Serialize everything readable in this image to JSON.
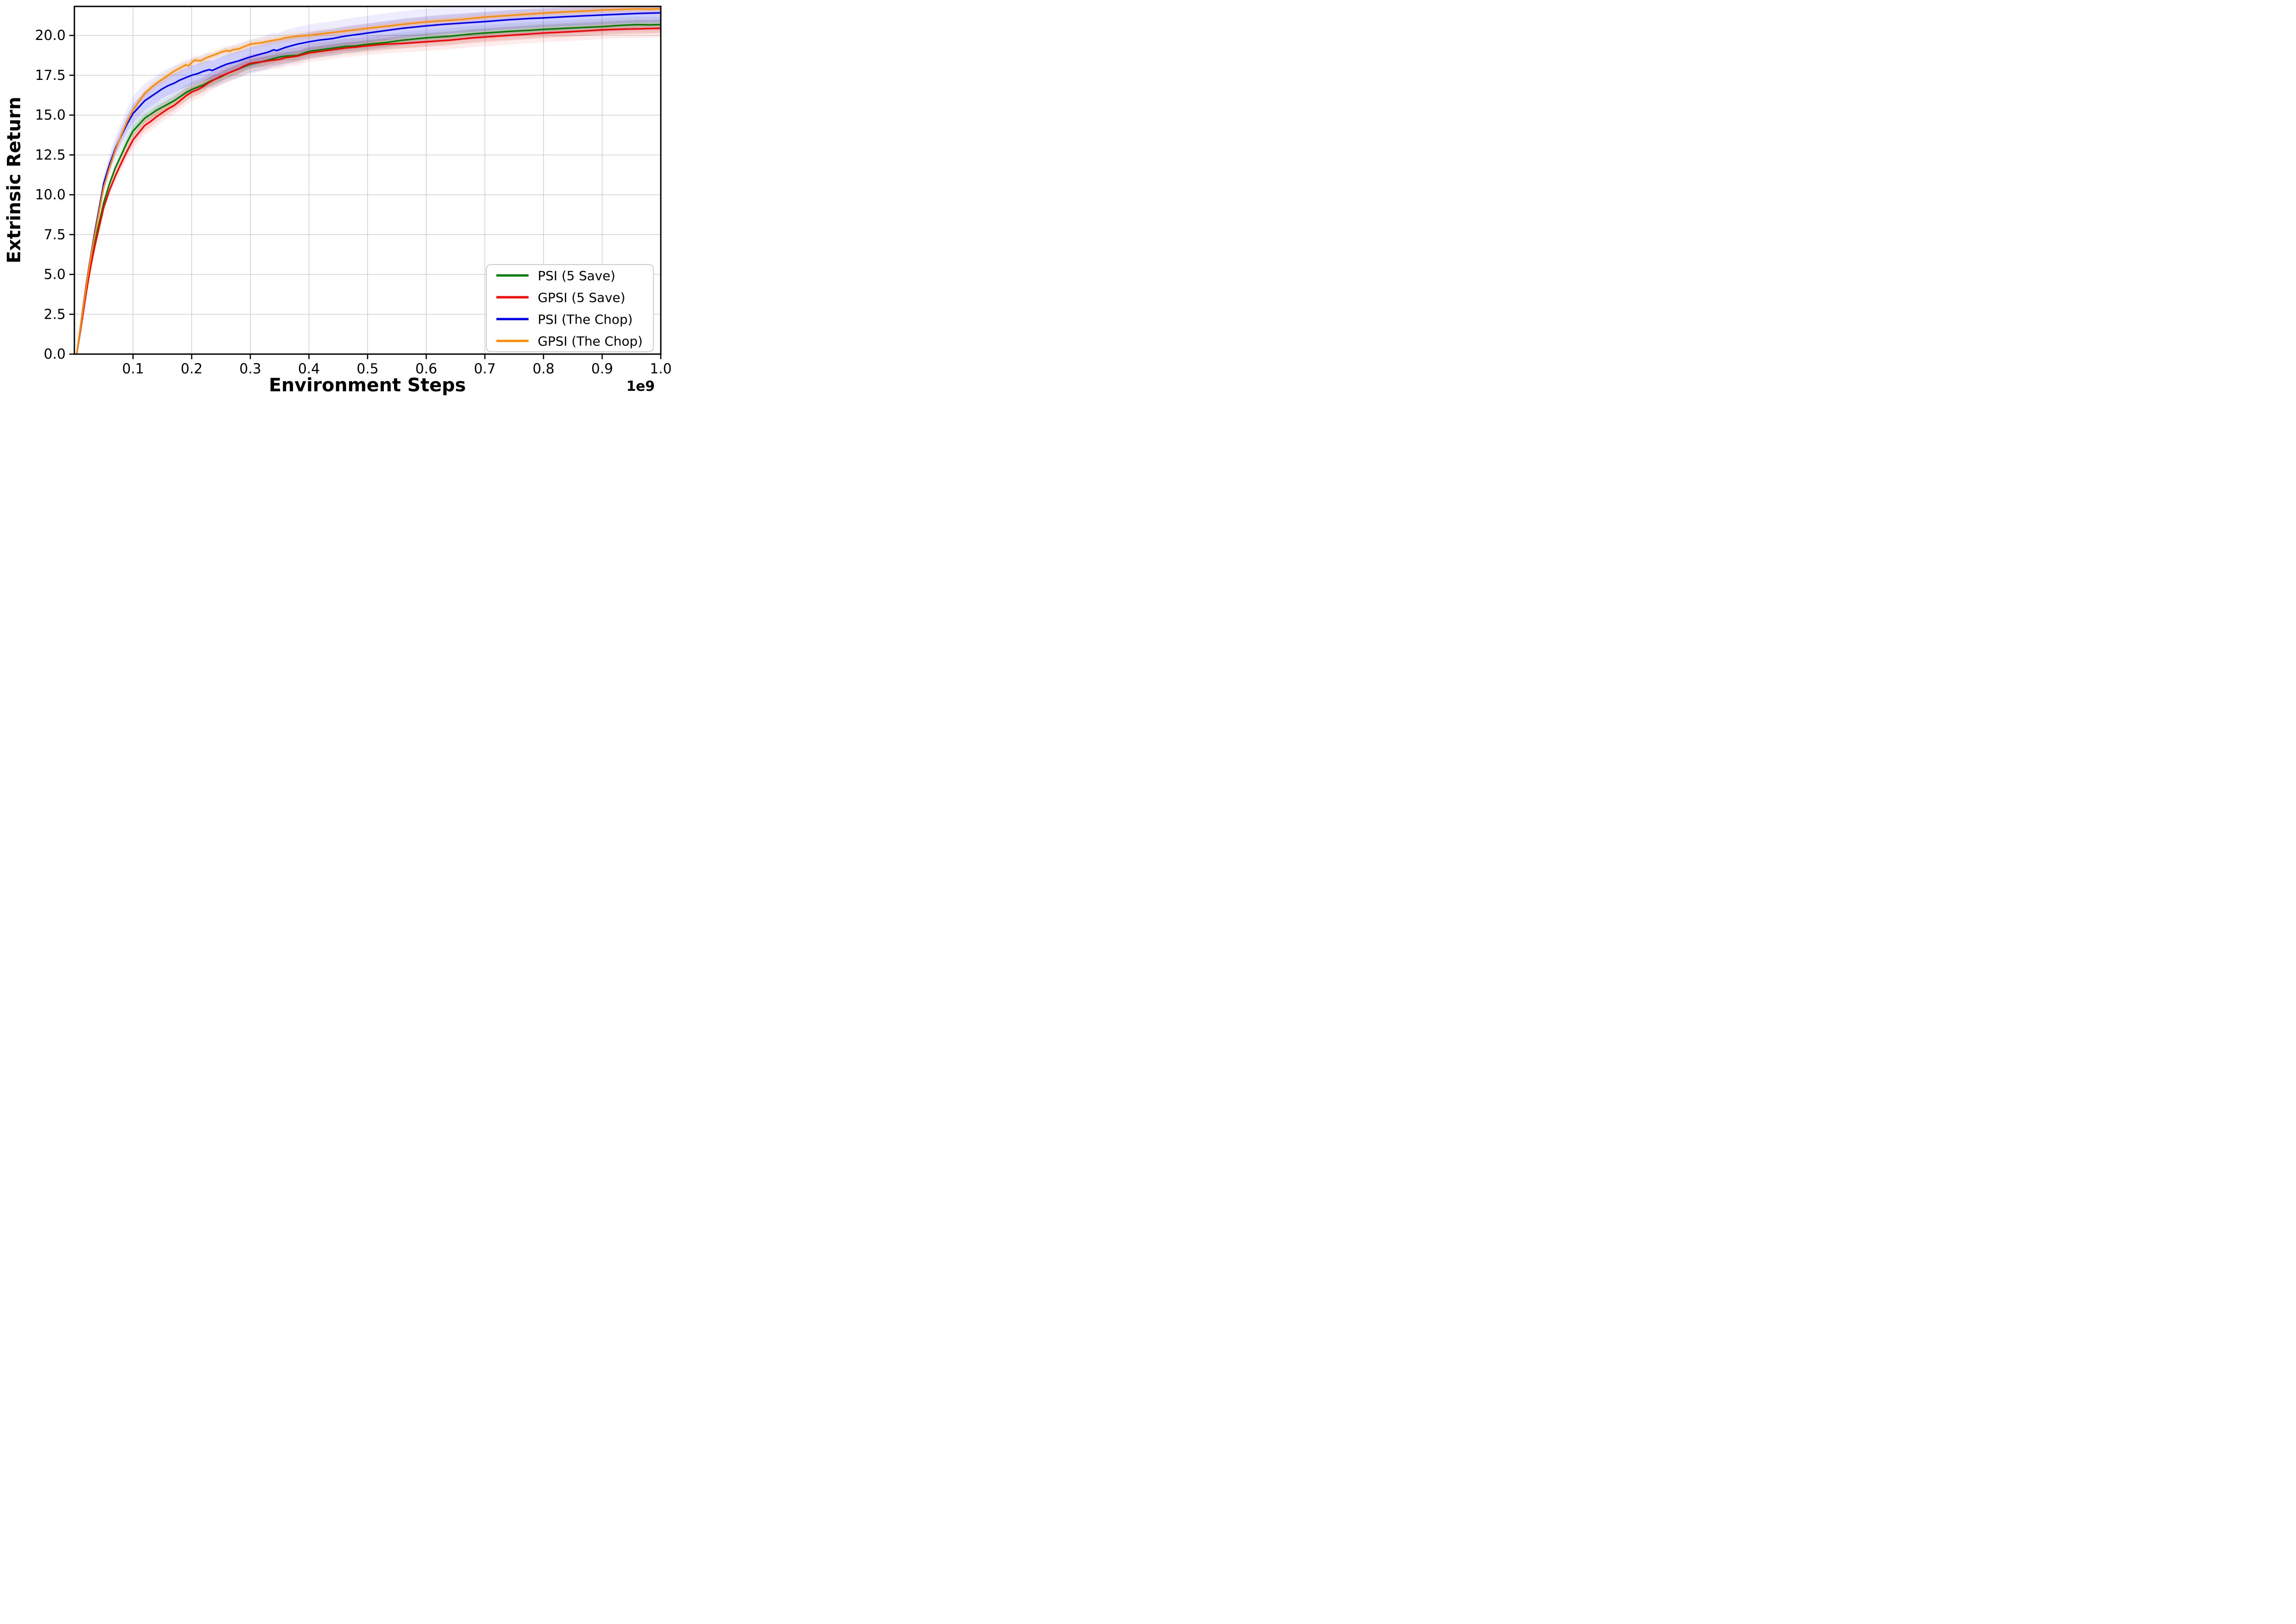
{
  "chart_data": {
    "type": "line",
    "title": "",
    "xlabel": "Environment Steps",
    "ylabel": "Extrinsic Return",
    "x_offset_label": "1e9",
    "xlim": [
      0,
      1.0
    ],
    "ylim": [
      0,
      21.82
    ],
    "xticks": [
      0.1,
      0.2,
      0.3,
      0.4,
      0.5,
      0.6,
      0.7,
      0.8,
      0.9,
      1.0
    ],
    "yticks": [
      0.0,
      2.5,
      5.0,
      7.5,
      10.0,
      12.5,
      15.0,
      17.5,
      20.0
    ],
    "grid": true,
    "grid_color": "#c9c9c9",
    "spine_color": "#000000",
    "legend_position": "lower right",
    "legend_border_color": "#cccccc",
    "series": [
      {
        "name": "PSI (5 Save)",
        "color": "#008000",
        "band_width": 0.28,
        "points": [
          [
            0.004,
            0
          ],
          [
            0.01,
            1.5
          ],
          [
            0.015,
            2.8
          ],
          [
            0.02,
            4.0
          ],
          [
            0.025,
            5.1
          ],
          [
            0.03,
            6.1
          ],
          [
            0.035,
            7.0
          ],
          [
            0.04,
            7.9
          ],
          [
            0.045,
            8.7
          ],
          [
            0.05,
            9.5
          ],
          [
            0.06,
            10.7
          ],
          [
            0.07,
            11.7
          ],
          [
            0.08,
            12.5
          ],
          [
            0.09,
            13.3
          ],
          [
            0.1,
            14.0
          ],
          [
            0.11,
            14.4
          ],
          [
            0.12,
            14.8
          ],
          [
            0.13,
            15.05
          ],
          [
            0.14,
            15.3
          ],
          [
            0.15,
            15.5
          ],
          [
            0.16,
            15.7
          ],
          [
            0.17,
            15.9
          ],
          [
            0.18,
            16.15
          ],
          [
            0.19,
            16.4
          ],
          [
            0.2,
            16.6
          ],
          [
            0.21,
            16.75
          ],
          [
            0.22,
            16.9
          ],
          [
            0.23,
            17.1
          ],
          [
            0.24,
            17.25
          ],
          [
            0.25,
            17.4
          ],
          [
            0.26,
            17.6
          ],
          [
            0.27,
            17.75
          ],
          [
            0.28,
            17.9
          ],
          [
            0.29,
            18.05
          ],
          [
            0.3,
            18.2
          ],
          [
            0.32,
            18.35
          ],
          [
            0.34,
            18.55
          ],
          [
            0.35,
            18.65
          ],
          [
            0.36,
            18.7
          ],
          [
            0.38,
            18.75
          ],
          [
            0.4,
            19.0
          ],
          [
            0.42,
            19.1
          ],
          [
            0.44,
            19.2
          ],
          [
            0.46,
            19.3
          ],
          [
            0.48,
            19.35
          ],
          [
            0.5,
            19.45
          ],
          [
            0.53,
            19.55
          ],
          [
            0.56,
            19.7
          ],
          [
            0.6,
            19.85
          ],
          [
            0.64,
            19.95
          ],
          [
            0.68,
            20.1
          ],
          [
            0.7,
            20.15
          ],
          [
            0.74,
            20.25
          ],
          [
            0.78,
            20.33
          ],
          [
            0.8,
            20.38
          ],
          [
            0.84,
            20.45
          ],
          [
            0.88,
            20.52
          ],
          [
            0.9,
            20.55
          ],
          [
            0.93,
            20.63
          ],
          [
            0.96,
            20.68
          ],
          [
            0.98,
            20.66
          ],
          [
            1.0,
            20.68
          ]
        ]
      },
      {
        "name": "GPSI (5 Save)",
        "color": "#ff0000",
        "band_width": 0.32,
        "points": [
          [
            0.004,
            0
          ],
          [
            0.01,
            1.4
          ],
          [
            0.015,
            2.6
          ],
          [
            0.02,
            3.8
          ],
          [
            0.025,
            4.9
          ],
          [
            0.03,
            5.9
          ],
          [
            0.035,
            6.8
          ],
          [
            0.04,
            7.6
          ],
          [
            0.045,
            8.4
          ],
          [
            0.05,
            9.2
          ],
          [
            0.06,
            10.3
          ],
          [
            0.07,
            11.2
          ],
          [
            0.08,
            12.0
          ],
          [
            0.09,
            12.75
          ],
          [
            0.1,
            13.45
          ],
          [
            0.11,
            13.9
          ],
          [
            0.12,
            14.35
          ],
          [
            0.13,
            14.6
          ],
          [
            0.14,
            14.9
          ],
          [
            0.15,
            15.15
          ],
          [
            0.16,
            15.4
          ],
          [
            0.17,
            15.6
          ],
          [
            0.18,
            15.9
          ],
          [
            0.19,
            16.2
          ],
          [
            0.2,
            16.45
          ],
          [
            0.21,
            16.6
          ],
          [
            0.22,
            16.8
          ],
          [
            0.23,
            17.05
          ],
          [
            0.24,
            17.25
          ],
          [
            0.25,
            17.45
          ],
          [
            0.26,
            17.6
          ],
          [
            0.27,
            17.75
          ],
          [
            0.28,
            17.9
          ],
          [
            0.29,
            18.1
          ],
          [
            0.3,
            18.25
          ],
          [
            0.31,
            18.3
          ],
          [
            0.32,
            18.35
          ],
          [
            0.33,
            18.4
          ],
          [
            0.34,
            18.45
          ],
          [
            0.35,
            18.5
          ],
          [
            0.36,
            18.6
          ],
          [
            0.38,
            18.7
          ],
          [
            0.4,
            18.9
          ],
          [
            0.42,
            19.0
          ],
          [
            0.44,
            19.1
          ],
          [
            0.46,
            19.2
          ],
          [
            0.48,
            19.27
          ],
          [
            0.5,
            19.35
          ],
          [
            0.53,
            19.45
          ],
          [
            0.56,
            19.5
          ],
          [
            0.6,
            19.6
          ],
          [
            0.64,
            19.7
          ],
          [
            0.68,
            19.85
          ],
          [
            0.7,
            19.9
          ],
          [
            0.74,
            20.0
          ],
          [
            0.78,
            20.1
          ],
          [
            0.8,
            20.15
          ],
          [
            0.84,
            20.22
          ],
          [
            0.88,
            20.3
          ],
          [
            0.9,
            20.35
          ],
          [
            0.94,
            20.4
          ],
          [
            0.97,
            20.42
          ],
          [
            1.0,
            20.45
          ]
        ]
      },
      {
        "name": "PSI (The Chop)",
        "color": "#0000ff",
        "band_width": 0.6,
        "points": [
          [
            0.004,
            0
          ],
          [
            0.01,
            1.6
          ],
          [
            0.015,
            3.0
          ],
          [
            0.02,
            4.3
          ],
          [
            0.025,
            5.5
          ],
          [
            0.03,
            6.6
          ],
          [
            0.035,
            7.7
          ],
          [
            0.04,
            8.7
          ],
          [
            0.045,
            9.7
          ],
          [
            0.05,
            10.7
          ],
          [
            0.06,
            11.9
          ],
          [
            0.07,
            12.9
          ],
          [
            0.08,
            13.7
          ],
          [
            0.09,
            14.45
          ],
          [
            0.1,
            15.1
          ],
          [
            0.11,
            15.5
          ],
          [
            0.12,
            15.9
          ],
          [
            0.13,
            16.15
          ],
          [
            0.14,
            16.4
          ],
          [
            0.15,
            16.65
          ],
          [
            0.16,
            16.85
          ],
          [
            0.17,
            17.0
          ],
          [
            0.18,
            17.2
          ],
          [
            0.19,
            17.35
          ],
          [
            0.2,
            17.5
          ],
          [
            0.21,
            17.6
          ],
          [
            0.22,
            17.75
          ],
          [
            0.23,
            17.85
          ],
          [
            0.235,
            17.8
          ],
          [
            0.25,
            18.05
          ],
          [
            0.26,
            18.2
          ],
          [
            0.28,
            18.4
          ],
          [
            0.3,
            18.65
          ],
          [
            0.32,
            18.85
          ],
          [
            0.33,
            18.95
          ],
          [
            0.34,
            19.1
          ],
          [
            0.345,
            19.05
          ],
          [
            0.36,
            19.25
          ],
          [
            0.38,
            19.45
          ],
          [
            0.4,
            19.6
          ],
          [
            0.42,
            19.72
          ],
          [
            0.44,
            19.8
          ],
          [
            0.46,
            19.95
          ],
          [
            0.48,
            20.05
          ],
          [
            0.5,
            20.15
          ],
          [
            0.53,
            20.3
          ],
          [
            0.56,
            20.45
          ],
          [
            0.6,
            20.6
          ],
          [
            0.63,
            20.7
          ],
          [
            0.66,
            20.77
          ],
          [
            0.7,
            20.87
          ],
          [
            0.74,
            20.98
          ],
          [
            0.78,
            21.07
          ],
          [
            0.8,
            21.1
          ],
          [
            0.84,
            21.18
          ],
          [
            0.88,
            21.25
          ],
          [
            0.9,
            21.28
          ],
          [
            0.93,
            21.33
          ],
          [
            0.96,
            21.38
          ],
          [
            1.0,
            21.42
          ]
        ]
      },
      {
        "name": "GPSI (The Chop)",
        "color": "#ff8c00",
        "band_width": 0.18,
        "points": [
          [
            0.004,
            0
          ],
          [
            0.01,
            1.6
          ],
          [
            0.015,
            2.95
          ],
          [
            0.02,
            4.2
          ],
          [
            0.025,
            5.4
          ],
          [
            0.03,
            6.5
          ],
          [
            0.035,
            7.5
          ],
          [
            0.04,
            8.5
          ],
          [
            0.045,
            9.5
          ],
          [
            0.05,
            10.45
          ],
          [
            0.06,
            11.7
          ],
          [
            0.07,
            12.8
          ],
          [
            0.08,
            13.75
          ],
          [
            0.09,
            14.6
          ],
          [
            0.1,
            15.3
          ],
          [
            0.11,
            15.85
          ],
          [
            0.12,
            16.35
          ],
          [
            0.13,
            16.7
          ],
          [
            0.14,
            17.0
          ],
          [
            0.15,
            17.25
          ],
          [
            0.16,
            17.5
          ],
          [
            0.17,
            17.75
          ],
          [
            0.18,
            17.95
          ],
          [
            0.19,
            18.15
          ],
          [
            0.195,
            18.1
          ],
          [
            0.2,
            18.3
          ],
          [
            0.205,
            18.45
          ],
          [
            0.215,
            18.4
          ],
          [
            0.225,
            18.6
          ],
          [
            0.24,
            18.8
          ],
          [
            0.25,
            18.95
          ],
          [
            0.26,
            19.05
          ],
          [
            0.265,
            19.0
          ],
          [
            0.27,
            19.1
          ],
          [
            0.28,
            19.15
          ],
          [
            0.29,
            19.3
          ],
          [
            0.3,
            19.45
          ],
          [
            0.32,
            19.55
          ],
          [
            0.34,
            19.7
          ],
          [
            0.35,
            19.75
          ],
          [
            0.36,
            19.85
          ],
          [
            0.38,
            19.95
          ],
          [
            0.4,
            20.0
          ],
          [
            0.42,
            20.1
          ],
          [
            0.44,
            20.18
          ],
          [
            0.46,
            20.27
          ],
          [
            0.48,
            20.35
          ],
          [
            0.5,
            20.45
          ],
          [
            0.53,
            20.57
          ],
          [
            0.56,
            20.7
          ],
          [
            0.6,
            20.85
          ],
          [
            0.63,
            20.93
          ],
          [
            0.66,
            21.0
          ],
          [
            0.7,
            21.15
          ],
          [
            0.74,
            21.25
          ],
          [
            0.78,
            21.35
          ],
          [
            0.8,
            21.4
          ],
          [
            0.84,
            21.48
          ],
          [
            0.88,
            21.55
          ],
          [
            0.9,
            21.6
          ],
          [
            0.93,
            21.63
          ],
          [
            0.96,
            21.67
          ],
          [
            0.98,
            21.65
          ],
          [
            1.0,
            21.68
          ]
        ]
      }
    ]
  }
}
